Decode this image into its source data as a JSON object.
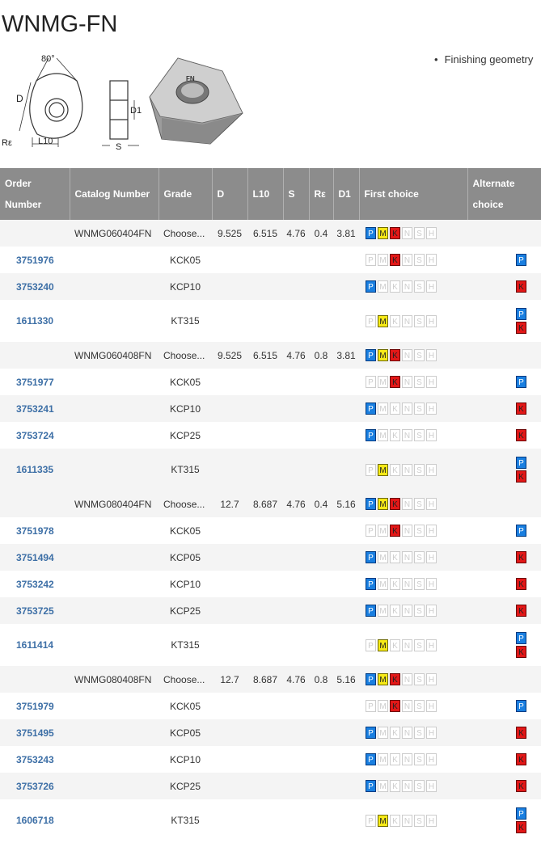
{
  "title": "WNMG-FN",
  "bullet": "Finishing geometry",
  "drawing_labels": {
    "angle": "80°",
    "d": "D",
    "re": "Rε",
    "l10": "L10",
    "d1": "D1",
    "s": "S",
    "brand": "FN"
  },
  "headers": [
    "Order Number",
    "Catalog Number",
    "Grade",
    "D",
    "L10",
    "S",
    "Rε",
    "D1",
    "First choice",
    "Alternate choice"
  ],
  "colors": {
    "P": "#1a7fe0",
    "M": "#f6e916",
    "K": "#e21717",
    "header_bg": "#8c8c8c",
    "link": "#3d6fa6"
  },
  "rows": [
    {
      "type": "group",
      "catalog": "WNMG060404FN",
      "grade": "Choose...",
      "D": "9.525",
      "L10": "6.515",
      "S": "4.76",
      "RE": "0.4",
      "D1": "3.81",
      "first": [
        "P",
        "M",
        "K"
      ],
      "alt": []
    },
    {
      "type": "item",
      "order": "3751976",
      "grade": "KCK05",
      "first": [
        "K"
      ],
      "alt": [
        "P"
      ]
    },
    {
      "type": "item",
      "order": "3753240",
      "grade": "KCP10",
      "first": [
        "P"
      ],
      "alt": [
        "K"
      ]
    },
    {
      "type": "item",
      "order": "1611330",
      "grade": "KT315",
      "first": [
        "M"
      ],
      "alt": [
        "P",
        "K"
      ]
    },
    {
      "type": "group",
      "catalog": "WNMG060408FN",
      "grade": "Choose...",
      "D": "9.525",
      "L10": "6.515",
      "S": "4.76",
      "RE": "0.8",
      "D1": "3.81",
      "first": [
        "P",
        "M",
        "K"
      ],
      "alt": []
    },
    {
      "type": "item",
      "order": "3751977",
      "grade": "KCK05",
      "first": [
        "K"
      ],
      "alt": [
        "P"
      ]
    },
    {
      "type": "item",
      "order": "3753241",
      "grade": "KCP10",
      "first": [
        "P"
      ],
      "alt": [
        "K"
      ]
    },
    {
      "type": "item",
      "order": "3753724",
      "grade": "KCP25",
      "first": [
        "P"
      ],
      "alt": [
        "K"
      ]
    },
    {
      "type": "item",
      "order": "1611335",
      "grade": "KT315",
      "first": [
        "M"
      ],
      "alt": [
        "P",
        "K"
      ]
    },
    {
      "type": "group",
      "catalog": "WNMG080404FN",
      "grade": "Choose...",
      "D": "12.7",
      "L10": "8.687",
      "S": "4.76",
      "RE": "0.4",
      "D1": "5.16",
      "first": [
        "P",
        "M",
        "K"
      ],
      "alt": []
    },
    {
      "type": "item",
      "order": "3751978",
      "grade": "KCK05",
      "first": [
        "K"
      ],
      "alt": [
        "P"
      ]
    },
    {
      "type": "item",
      "order": "3751494",
      "grade": "KCP05",
      "first": [
        "P"
      ],
      "alt": [
        "K"
      ]
    },
    {
      "type": "item",
      "order": "3753242",
      "grade": "KCP10",
      "first": [
        "P"
      ],
      "alt": [
        "K"
      ]
    },
    {
      "type": "item",
      "order": "3753725",
      "grade": "KCP25",
      "first": [
        "P"
      ],
      "alt": [
        "K"
      ]
    },
    {
      "type": "item",
      "order": "1611414",
      "grade": "KT315",
      "first": [
        "M"
      ],
      "alt": [
        "P",
        "K"
      ]
    },
    {
      "type": "group",
      "catalog": "WNMG080408FN",
      "grade": "Choose...",
      "D": "12.7",
      "L10": "8.687",
      "S": "4.76",
      "RE": "0.8",
      "D1": "5.16",
      "first": [
        "P",
        "M",
        "K"
      ],
      "alt": []
    },
    {
      "type": "item",
      "order": "3751979",
      "grade": "KCK05",
      "first": [
        "K"
      ],
      "alt": [
        "P"
      ]
    },
    {
      "type": "item",
      "order": "3751495",
      "grade": "KCP05",
      "first": [
        "P"
      ],
      "alt": [
        "K"
      ]
    },
    {
      "type": "item",
      "order": "3753243",
      "grade": "KCP10",
      "first": [
        "P"
      ],
      "alt": [
        "K"
      ]
    },
    {
      "type": "item",
      "order": "3753726",
      "grade": "KCP25",
      "first": [
        "P"
      ],
      "alt": [
        "K"
      ]
    },
    {
      "type": "item",
      "order": "1606718",
      "grade": "KT315",
      "first": [
        "M"
      ],
      "alt": [
        "P",
        "K"
      ]
    }
  ],
  "iso_letters": [
    "P",
    "M",
    "K",
    "N",
    "S",
    "H"
  ]
}
